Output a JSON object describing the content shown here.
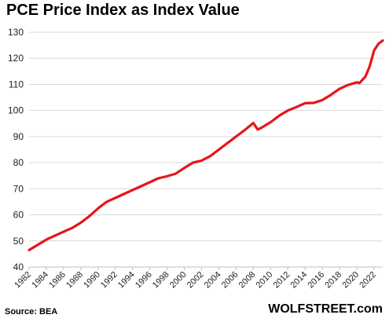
{
  "chart_data": {
    "type": "line",
    "title": "PCE Price Index  as Index Value",
    "xlabel": "",
    "ylabel": "",
    "ylim": [
      40,
      130
    ],
    "xlim": [
      1982,
      2023
    ],
    "y_ticks": [
      "40",
      "50",
      "60",
      "70",
      "80",
      "90",
      "100",
      "110",
      "120",
      "130"
    ],
    "x_ticks": [
      "1982",
      "1984",
      "1986",
      "1988",
      "1990",
      "1992",
      "1994",
      "1996",
      "1998",
      "2000",
      "2002",
      "2004",
      "2006",
      "2008",
      "2010",
      "2012",
      "2014",
      "2016",
      "2018",
      "2020",
      "2022"
    ],
    "grid": "horizontal",
    "line_color": "#e8141c",
    "series": [
      {
        "x": [
          1982,
          1983,
          1984,
          1985,
          1986,
          1987,
          1988,
          1989,
          1990,
          1991,
          1992,
          1993,
          1994,
          1995,
          1996,
          1997,
          1998,
          1999,
          2000,
          2001,
          2002,
          2003,
          2004,
          2005,
          2006,
          2007,
          2008,
          2008.5,
          2009,
          2009.5,
          2010,
          2011,
          2012,
          2013,
          2014,
          2015,
          2016,
          2017,
          2018,
          2019,
          2020,
          2020.3,
          2021,
          2021.5,
          2022,
          2022.5,
          2023
        ],
        "y": [
          46.5,
          48.5,
          50.5,
          52,
          53.5,
          55,
          57,
          59.5,
          62.5,
          65,
          66.5,
          68,
          69.5,
          71,
          72.5,
          74,
          74.8,
          75.8,
          78,
          80,
          80.8,
          82.5,
          85,
          87.5,
          90,
          92.5,
          95.2,
          92.7,
          93.5,
          94.5,
          95.5,
          98,
          100,
          101.3,
          102.8,
          102.9,
          104,
          106,
          108.3,
          109.8,
          110.8,
          110.5,
          113,
          117,
          123,
          125.5,
          126.8
        ]
      }
    ]
  },
  "footer": {
    "source": "Source: BEA",
    "brand": "WOLFSTREET.com"
  }
}
